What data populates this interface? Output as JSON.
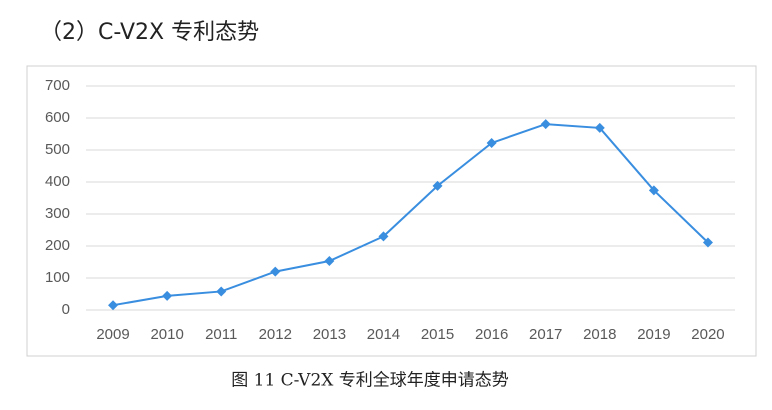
{
  "chart_data": {
    "type": "line",
    "title": "（2）C-V2X 专利态势",
    "caption": "图 11 C-V2X 专利全球年度申请态势",
    "categories": [
      "2009",
      "2010",
      "2011",
      "2012",
      "2013",
      "2014",
      "2015",
      "2016",
      "2017",
      "2018",
      "2019",
      "2020"
    ],
    "values": [
      15,
      44,
      58,
      120,
      153,
      230,
      388,
      522,
      581,
      569,
      374,
      211
    ],
    "color": "#3a8ee0",
    "ylim": [
      0,
      700
    ],
    "yticks": [
      0,
      100,
      200,
      300,
      400,
      500,
      600,
      700
    ],
    "grid": true
  }
}
